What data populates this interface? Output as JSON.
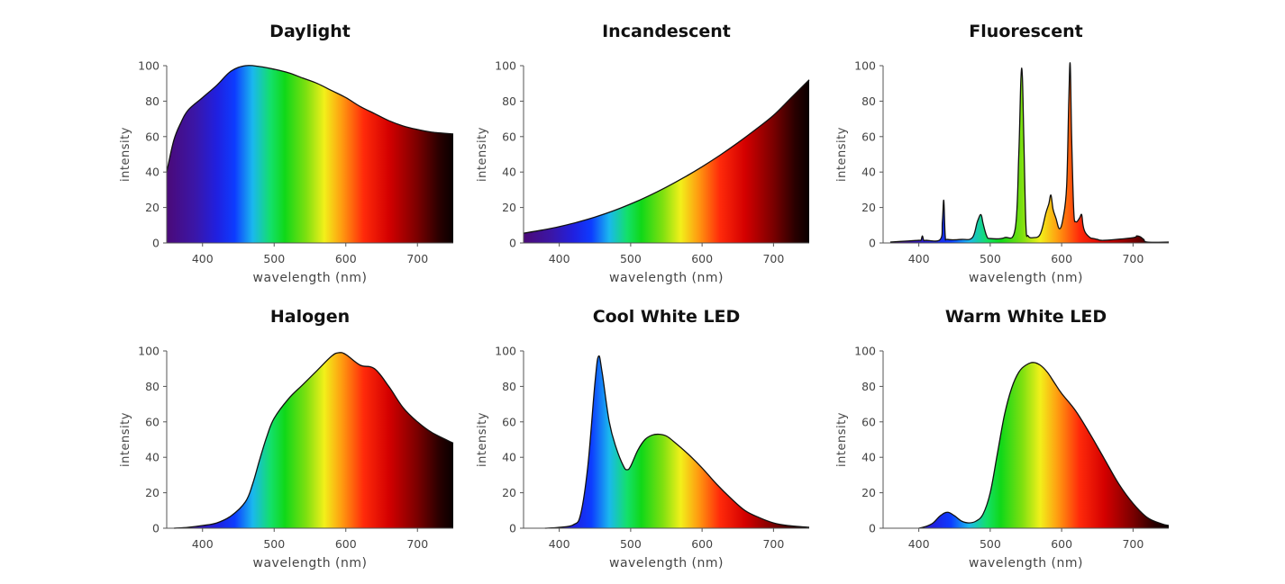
{
  "figure": {
    "panels": [
      {
        "title": "Daylight",
        "xlabel": "wavelength (nm)",
        "ylabel": "intensity"
      },
      {
        "title": "Incandescent",
        "xlabel": "wavelength (nm)",
        "ylabel": "intensity"
      },
      {
        "title": "Fluorescent",
        "xlabel": "wavelength (nm)",
        "ylabel": "intensity"
      },
      {
        "title": "Halogen",
        "xlabel": "wavelength (nm)",
        "ylabel": "intensity"
      },
      {
        "title": "Cool White LED",
        "xlabel": "wavelength (nm)",
        "ylabel": "intensity"
      },
      {
        "title": "Warm White LED",
        "xlabel": "wavelength (nm)",
        "ylabel": "intensity"
      }
    ]
  },
  "chart_data": [
    {
      "type": "area",
      "title": "Daylight",
      "xlabel": "wavelength (nm)",
      "ylabel": "intensity",
      "xlim": [
        350,
        750
      ],
      "ylim": [
        0,
        100
      ],
      "xticks": [
        400,
        500,
        600,
        700
      ],
      "yticks": [
        0,
        20,
        40,
        60,
        80,
        100
      ],
      "fill": "visible-spectrum gradient",
      "x": [
        350,
        360,
        370,
        380,
        400,
        420,
        440,
        460,
        480,
        500,
        520,
        540,
        560,
        580,
        600,
        620,
        640,
        660,
        680,
        700,
        720,
        750
      ],
      "y": [
        40,
        58,
        68,
        75,
        82,
        89,
        97,
        100,
        99.5,
        98,
        96,
        93,
        90,
        86,
        82,
        77,
        73,
        69,
        66,
        64,
        62.5,
        61.5
      ]
    },
    {
      "type": "area",
      "title": "Incandescent",
      "xlabel": "wavelength (nm)",
      "ylabel": "intensity",
      "xlim": [
        350,
        750
      ],
      "ylim": [
        0,
        100
      ],
      "xticks": [
        400,
        500,
        600,
        700
      ],
      "yticks": [
        0,
        20,
        40,
        60,
        80,
        100
      ],
      "fill": "visible-spectrum gradient",
      "x": [
        350,
        375,
        400,
        425,
        450,
        475,
        500,
        525,
        550,
        575,
        600,
        625,
        650,
        675,
        700,
        725,
        750
      ],
      "y": [
        5.5,
        7.2,
        9.2,
        11.7,
        14.6,
        18,
        22,
        26.5,
        31.5,
        37,
        43,
        49.5,
        56.5,
        64,
        72,
        82,
        92
      ]
    },
    {
      "type": "area",
      "title": "Fluorescent",
      "xlabel": "wavelength (nm)",
      "ylabel": "intensity",
      "xlim": [
        350,
        750
      ],
      "ylim": [
        0,
        100
      ],
      "xticks": [
        400,
        500,
        600,
        700
      ],
      "yticks": [
        0,
        20,
        40,
        60,
        80,
        100
      ],
      "fill": "visible-spectrum gradient",
      "x": [
        360,
        380,
        400,
        403,
        405,
        407,
        410,
        430,
        433,
        435,
        437,
        440,
        460,
        475,
        482,
        487,
        490,
        495,
        500,
        520,
        535,
        540,
        543,
        545,
        547,
        550,
        553,
        560,
        570,
        578,
        582,
        585,
        588,
        592,
        597,
        602,
        607,
        610,
        612,
        614,
        617,
        620,
        625,
        628,
        630,
        633,
        640,
        645,
        650,
        660,
        700,
        705,
        710,
        715,
        720,
        750
      ],
      "y": [
        0.5,
        1,
        1.5,
        1.5,
        4,
        1.5,
        1.5,
        2,
        12,
        24,
        4,
        2,
        2,
        3,
        12,
        16,
        11,
        4,
        2.5,
        3,
        8,
        50,
        93,
        94,
        60,
        10,
        4,
        3,
        5,
        17,
        22,
        27,
        19,
        14,
        8,
        14,
        32,
        80,
        101,
        60,
        18,
        12,
        14,
        16,
        10,
        6,
        3,
        2.5,
        2,
        1.5,
        3,
        4,
        3.5,
        2,
        0.5,
        0.5
      ]
    },
    {
      "type": "area",
      "title": "Halogen",
      "xlabel": "wavelength (nm)",
      "ylabel": "intensity",
      "xlim": [
        350,
        750
      ],
      "ylim": [
        0,
        100
      ],
      "xticks": [
        400,
        500,
        600,
        700
      ],
      "yticks": [
        0,
        20,
        40,
        60,
        80,
        100
      ],
      "fill": "visible-spectrum gradient",
      "x": [
        360,
        380,
        400,
        420,
        440,
        460,
        470,
        480,
        490,
        500,
        520,
        540,
        560,
        580,
        590,
        600,
        620,
        640,
        660,
        680,
        700,
        720,
        750
      ],
      "y": [
        0,
        0.5,
        1.5,
        3,
        7,
        15,
        25,
        39,
        52,
        62,
        73,
        81,
        89,
        97,
        99,
        98,
        92,
        90,
        80,
        68,
        60,
        54,
        48
      ]
    },
    {
      "type": "area",
      "title": "Cool White LED",
      "xlabel": "wavelength (nm)",
      "ylabel": "intensity",
      "xlim": [
        350,
        750
      ],
      "ylim": [
        0,
        100
      ],
      "xticks": [
        400,
        500,
        600,
        700
      ],
      "yticks": [
        0,
        20,
        40,
        60,
        80,
        100
      ],
      "fill": "visible-spectrum gradient",
      "x": [
        380,
        400,
        420,
        430,
        440,
        450,
        455,
        460,
        470,
        480,
        490,
        495,
        500,
        510,
        520,
        530,
        540,
        550,
        560,
        580,
        600,
        620,
        640,
        660,
        680,
        700,
        720,
        750
      ],
      "y": [
        0,
        0.5,
        2,
        8,
        35,
        82,
        97,
        88,
        60,
        45,
        35,
        33,
        35,
        44,
        50,
        52.5,
        53,
        52,
        49,
        42,
        34,
        25,
        17,
        10,
        6,
        3,
        1.5,
        0.5
      ]
    },
    {
      "type": "area",
      "title": "Warm White LED",
      "xlabel": "wavelength (nm)",
      "ylabel": "intensity",
      "xlim": [
        350,
        750
      ],
      "ylim": [
        0,
        100
      ],
      "xticks": [
        400,
        500,
        600,
        700
      ],
      "yticks": [
        0,
        20,
        40,
        60,
        80,
        100
      ],
      "fill": "visible-spectrum gradient",
      "x": [
        400,
        410,
        420,
        430,
        440,
        450,
        460,
        470,
        480,
        490,
        500,
        510,
        520,
        530,
        540,
        550,
        560,
        570,
        580,
        590,
        600,
        620,
        640,
        660,
        680,
        700,
        720,
        740,
        750
      ],
      "y": [
        0,
        1,
        3,
        7,
        9,
        7,
        4,
        3,
        4,
        8,
        20,
        42,
        64,
        79,
        88,
        92,
        93.5,
        92,
        88,
        82,
        76,
        66,
        53,
        39,
        25,
        14,
        6,
        2.5,
        1.5
      ]
    }
  ]
}
